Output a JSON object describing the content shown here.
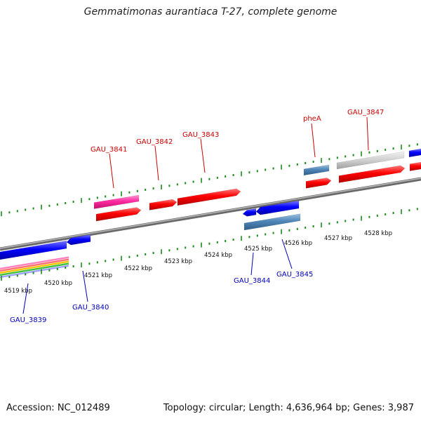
{
  "title": "Gemmatimonas aurantiaca T-27, complete genome",
  "footer": {
    "accession": "Accession: NC_012489",
    "summary": "Topology: circular; Length: 4,636,964 bp; Genes: 3,987"
  },
  "ruler": {
    "labels": [
      "4519 kbp",
      "4520 kbp",
      "4521 kbp",
      "4522 kbp",
      "4523 kbp",
      "4524 kbp",
      "4525 kbp",
      "4526 kbp",
      "4527 kbp",
      "4528 kbp"
    ]
  },
  "gene_labels": {
    "forward": [
      "GAU_3841",
      "GAU_3842",
      "GAU_3843",
      "pheA",
      "GAU_3847"
    ],
    "reverse": [
      "GAU_3839",
      "GAU_3840",
      "GAU_3844",
      "GAU_3845"
    ]
  },
  "colors": {
    "forward_label": "#cc0000",
    "reverse_label": "#0000bb",
    "cds_red": "#ff0000",
    "cds_blue": "#0000ff",
    "cds_pink": "#ff2aa0",
    "cds_steel": "#4f86b8",
    "cds_gray": "#c8c8c8",
    "tick_green": "#1a8a1a",
    "backbone": "#8a8a8a"
  }
}
